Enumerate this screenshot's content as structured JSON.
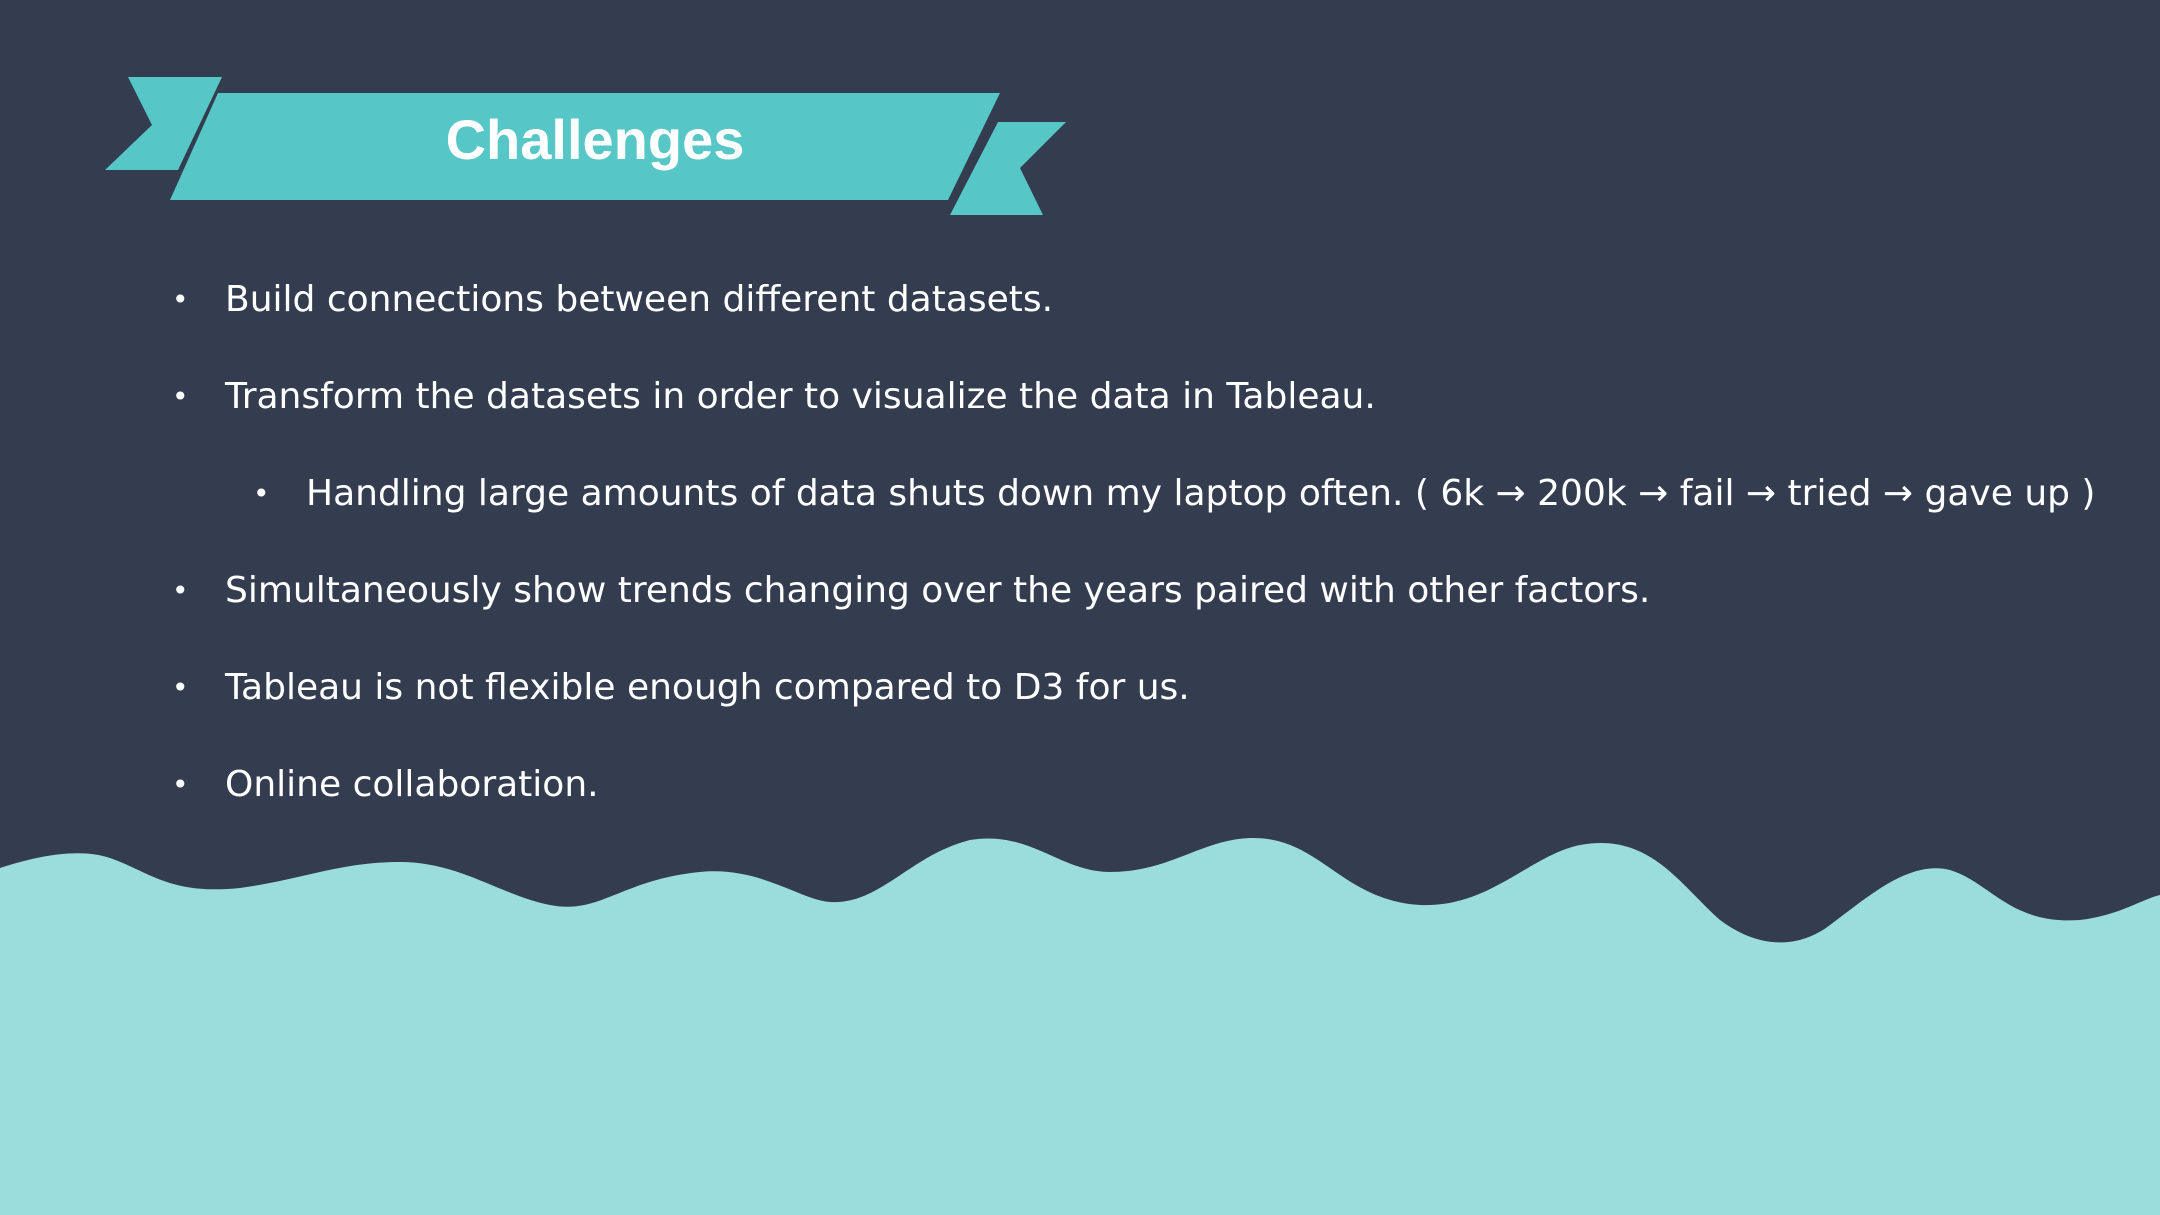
{
  "slide": {
    "title": "Challenges",
    "bullets": [
      {
        "level": 1,
        "text": "Build connections between different datasets."
      },
      {
        "level": 1,
        "text": "Transform the datasets in order to visualize the data in Tableau."
      },
      {
        "level": 2,
        "text": "Handling large amounts of data shuts down my laptop often. ( 6k → 200k → fail → tried → gave up )"
      },
      {
        "level": 1,
        "text": "Simultaneously show trends changing over the years paired with other factors."
      },
      {
        "level": 1,
        "text": "Tableau is not flexible enough compared to D3 for us."
      },
      {
        "level": 1,
        "text": "Online collaboration."
      }
    ],
    "bullet_glyph": "•"
  },
  "colors": {
    "background": "#343d50",
    "accent": "#56c6c6",
    "wave": "#9bdddc",
    "text": "#ffffff"
  }
}
